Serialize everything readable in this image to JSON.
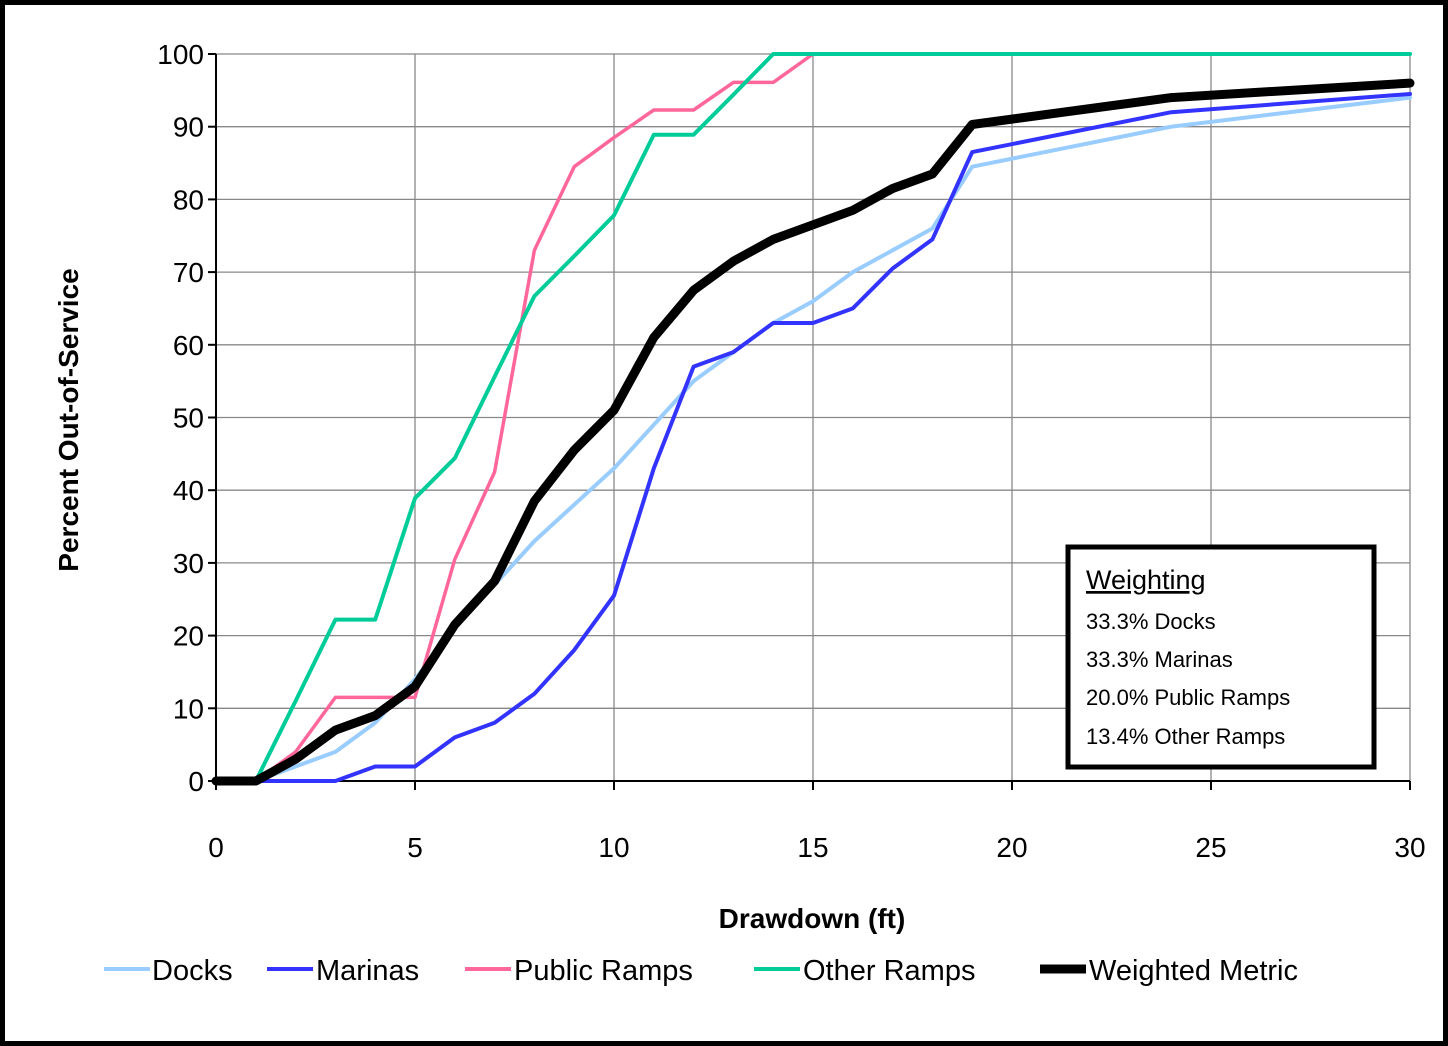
{
  "chart_data": {
    "type": "line",
    "title": "",
    "xlabel": "Drawdown (ft)",
    "ylabel": "Percent  Out-of-Service",
    "xlim": [
      0,
      30
    ],
    "ylim": [
      0,
      100
    ],
    "xticks": [
      0,
      5,
      10,
      15,
      20,
      25,
      30
    ],
    "yticks": [
      0,
      10,
      20,
      30,
      40,
      50,
      60,
      70,
      80,
      90,
      100
    ],
    "grid": true,
    "legend_position": "bottom",
    "series": [
      {
        "name": "Docks",
        "color": "#99ccff",
        "x": [
          0,
          1,
          2,
          3,
          4,
          5,
          6,
          7,
          8,
          9,
          10,
          11,
          12,
          13,
          14,
          15,
          16,
          17,
          18,
          19,
          24,
          30
        ],
        "y": [
          0,
          0,
          2,
          4,
          8,
          14,
          21,
          27,
          33,
          38,
          43,
          49,
          55,
          59,
          63,
          66,
          70,
          73,
          76,
          84.5,
          90,
          94
        ]
      },
      {
        "name": "Marinas",
        "color": "#3333ff",
        "x": [
          0,
          1,
          2,
          3,
          4,
          5,
          6,
          7,
          8,
          9,
          10,
          11,
          12,
          13,
          14,
          15,
          16,
          17,
          18,
          19,
          24,
          30
        ],
        "y": [
          0,
          0,
          0,
          0,
          2,
          2,
          6,
          8,
          12,
          18,
          25.5,
          43,
          57,
          59,
          63,
          63,
          65,
          70.5,
          74.5,
          86.5,
          92,
          94.5
        ]
      },
      {
        "name": "Public Ramps",
        "color": "#ff6699",
        "x": [
          0,
          1,
          2,
          3,
          4,
          5,
          6,
          7,
          8,
          9,
          10,
          11,
          12,
          13,
          14,
          15,
          30
        ],
        "y": [
          0,
          0,
          4,
          11.5,
          11.5,
          11.5,
          30.5,
          42.5,
          73,
          84.5,
          88.5,
          92.3,
          92.3,
          96.1,
          96.1,
          100,
          100
        ]
      },
      {
        "name": "Other Ramps",
        "color": "#00cc99",
        "x": [
          0,
          1,
          2,
          3,
          4,
          5,
          6,
          7,
          8,
          9,
          10,
          11,
          12,
          13,
          14,
          30
        ],
        "y": [
          0,
          0,
          11,
          22.2,
          22.2,
          38.9,
          44.4,
          55.6,
          66.7,
          72.2,
          77.8,
          88.9,
          88.9,
          94.4,
          100,
          100
        ]
      },
      {
        "name": "Weighted Metric",
        "color": "#000000",
        "x": [
          0,
          1,
          2,
          3,
          4,
          5,
          6,
          7,
          8,
          9,
          10,
          11,
          12,
          13,
          14,
          15,
          16,
          17,
          18,
          19,
          24,
          30
        ],
        "y": [
          0,
          0,
          3,
          7,
          9,
          13,
          21.5,
          27.5,
          38.5,
          45.5,
          51,
          61,
          67.5,
          71.5,
          74.5,
          76.5,
          78.5,
          81.5,
          83.5,
          90.3,
          94,
          96
        ]
      }
    ],
    "annotation": {
      "title": "Weighting",
      "lines": [
        "33.3% Docks",
        "33.3% Marinas",
        "20.0% Public Ramps",
        "13.4% Other Ramps"
      ]
    }
  }
}
